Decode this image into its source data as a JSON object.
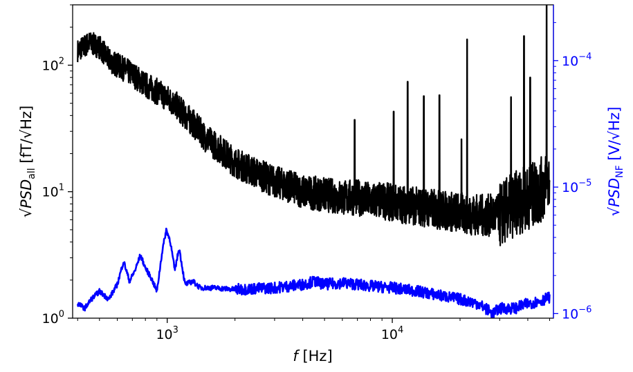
{
  "chart_data": {
    "type": "line",
    "title": "",
    "x_axis": {
      "label": "f [Hz]",
      "scale": "log",
      "range": [
        380,
        52000
      ],
      "major_ticks": [
        1000,
        10000
      ],
      "major_tick_labels": [
        {
          "base": "10",
          "exp": "3"
        },
        {
          "base": "10",
          "exp": "4"
        }
      ]
    },
    "y_axis_left": {
      "label": "√PSD_all [fT/√Hz]",
      "label_parts": {
        "main": "PSD",
        "sub": "all",
        "unit": " [fT/",
        "unit_root": "Hz",
        "close": "]"
      },
      "scale": "log",
      "range": [
        1,
        300
      ],
      "major_ticks": [
        1,
        10,
        100
      ],
      "major_tick_labels": [
        {
          "base": "10",
          "exp": "0"
        },
        {
          "base": "10",
          "exp": "1"
        },
        {
          "base": "10",
          "exp": "2"
        }
      ],
      "color": "#000000"
    },
    "y_axis_right": {
      "label": "√PSD_NF [V/√Hz]",
      "label_parts": {
        "main": "PSD",
        "sub": "NF",
        "unit": " [V/",
        "unit_root": "Hz",
        "close": "]"
      },
      "scale": "log",
      "range": [
        9.2e-07,
        0.000276
      ],
      "major_ticks": [
        1e-06,
        1e-05,
        0.0001
      ],
      "major_tick_labels": [
        {
          "base": "10",
          "exp": "−6"
        },
        {
          "base": "10",
          "exp": "−5"
        },
        {
          "base": "10",
          "exp": "−4"
        }
      ],
      "color": "#0000ff"
    },
    "series": [
      {
        "axis": "left",
        "color": "#000000",
        "x": [
          400,
          450,
          500,
          550,
          600,
          700,
          800,
          900,
          1000,
          1100,
          1200,
          1300,
          1400,
          1500,
          1700,
          2000,
          2500,
          3000,
          3500,
          4000,
          5000,
          6000,
          7000,
          8000,
          9000,
          10000,
          12000,
          14000,
          16000,
          18000,
          20000,
          25000,
          30000,
          35000,
          40000,
          45000,
          50000
        ],
        "y": [
          130,
          150,
          140,
          110,
          100,
          85,
          70,
          62,
          55,
          48,
          40,
          35,
          30,
          26,
          22,
          17,
          14,
          12,
          11,
          10,
          9.5,
          9,
          9,
          8.5,
          8.5,
          8.2,
          7.8,
          7.5,
          7.2,
          7,
          6.8,
          6.5,
          6.5,
          8,
          9,
          10,
          12
        ],
        "spikes": [
          {
            "x": 6800,
            "y": 37
          },
          {
            "x": 10150,
            "y": 43
          },
          {
            "x": 11700,
            "y": 74
          },
          {
            "x": 13800,
            "y": 57
          },
          {
            "x": 16200,
            "y": 58
          },
          {
            "x": 20300,
            "y": 26
          },
          {
            "x": 21500,
            "y": 160
          },
          {
            "x": 33700,
            "y": 56
          },
          {
            "x": 38500,
            "y": 170
          },
          {
            "x": 41000,
            "y": 80
          },
          {
            "x": 48500,
            "y": 300
          }
        ]
      },
      {
        "axis": "right",
        "color": "#0000ff",
        "x": [
          400,
          430,
          460,
          500,
          550,
          600,
          640,
          680,
          720,
          760,
          800,
          850,
          900,
          950,
          990,
          1030,
          1080,
          1130,
          1200,
          1300,
          1400,
          1600,
          2000,
          3000,
          4000,
          4500,
          5000,
          6000,
          7000,
          8000,
          10000,
          13000,
          16000,
          20000,
          24000,
          27000,
          28000,
          30000,
          35000,
          40000,
          45000,
          50000
        ],
        "y": [
          1.2e-06,
          1.1e-06,
          1.3e-06,
          1.5e-06,
          1.3e-06,
          1.7e-06,
          2.6e-06,
          1.8e-06,
          2.2e-06,
          2.9e-06,
          2.3e-06,
          1.9e-06,
          1.5e-06,
          3.1e-06,
          4.6e-06,
          3.8e-06,
          2.2e-06,
          3.3e-06,
          1.7e-06,
          1.8e-06,
          1.6e-06,
          1.6e-06,
          1.55e-06,
          1.6e-06,
          1.7e-06,
          1.8e-06,
          1.7e-06,
          1.75e-06,
          1.7e-06,
          1.65e-06,
          1.6e-06,
          1.5e-06,
          1.4e-06,
          1.3e-06,
          1.2e-06,
          1.05e-06,
          1e-06,
          1.1e-06,
          1.1e-06,
          1.2e-06,
          1.25e-06,
          1.35e-06
        ]
      }
    ],
    "grid": false,
    "legend": "none"
  }
}
